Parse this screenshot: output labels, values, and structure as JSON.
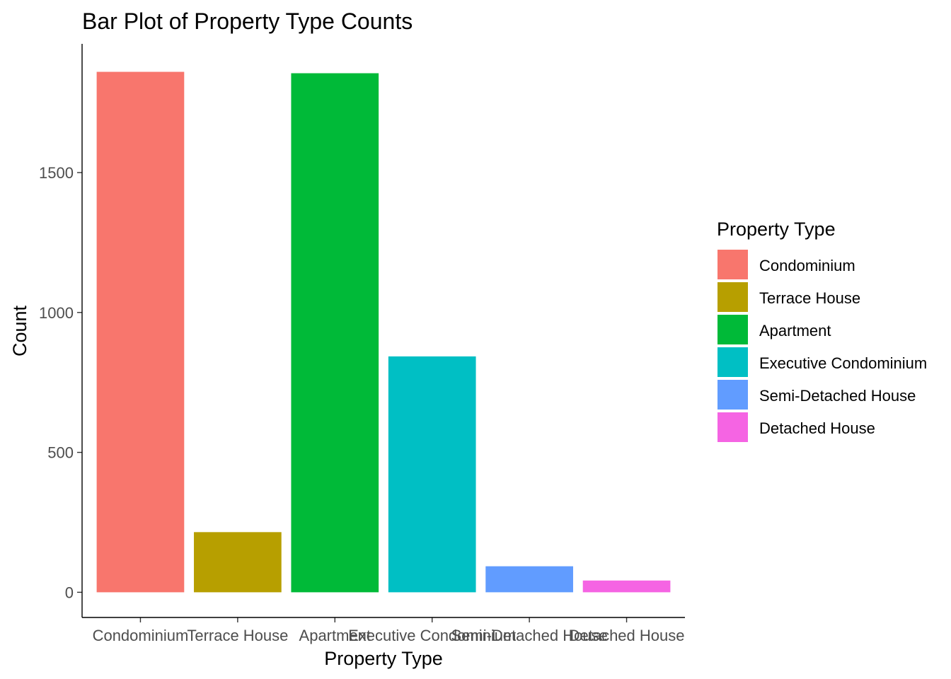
{
  "chart_data": {
    "type": "bar",
    "title": "Bar Plot of Property Type Counts",
    "xlabel": "Property Type",
    "ylabel": "Count",
    "categories": [
      "Condominium",
      "Terrace House",
      "Apartment",
      "Executive Condominium",
      "Semi-Detached House",
      "Detached House"
    ],
    "values": [
      1860,
      215,
      1855,
      843,
      93,
      42
    ],
    "colors": [
      "#F8766D",
      "#B79F00",
      "#00BA38",
      "#00BFC4",
      "#619CFF",
      "#F564E3"
    ],
    "yticks": [
      0,
      500,
      1000,
      1500
    ],
    "ylim": [
      -90,
      1960
    ],
    "grid": false,
    "legend": {
      "title": "Property Type",
      "placement": "right",
      "entries": [
        "Condominium",
        "Terrace House",
        "Apartment",
        "Executive Condominium",
        "Semi-Detached House",
        "Detached House"
      ]
    }
  }
}
